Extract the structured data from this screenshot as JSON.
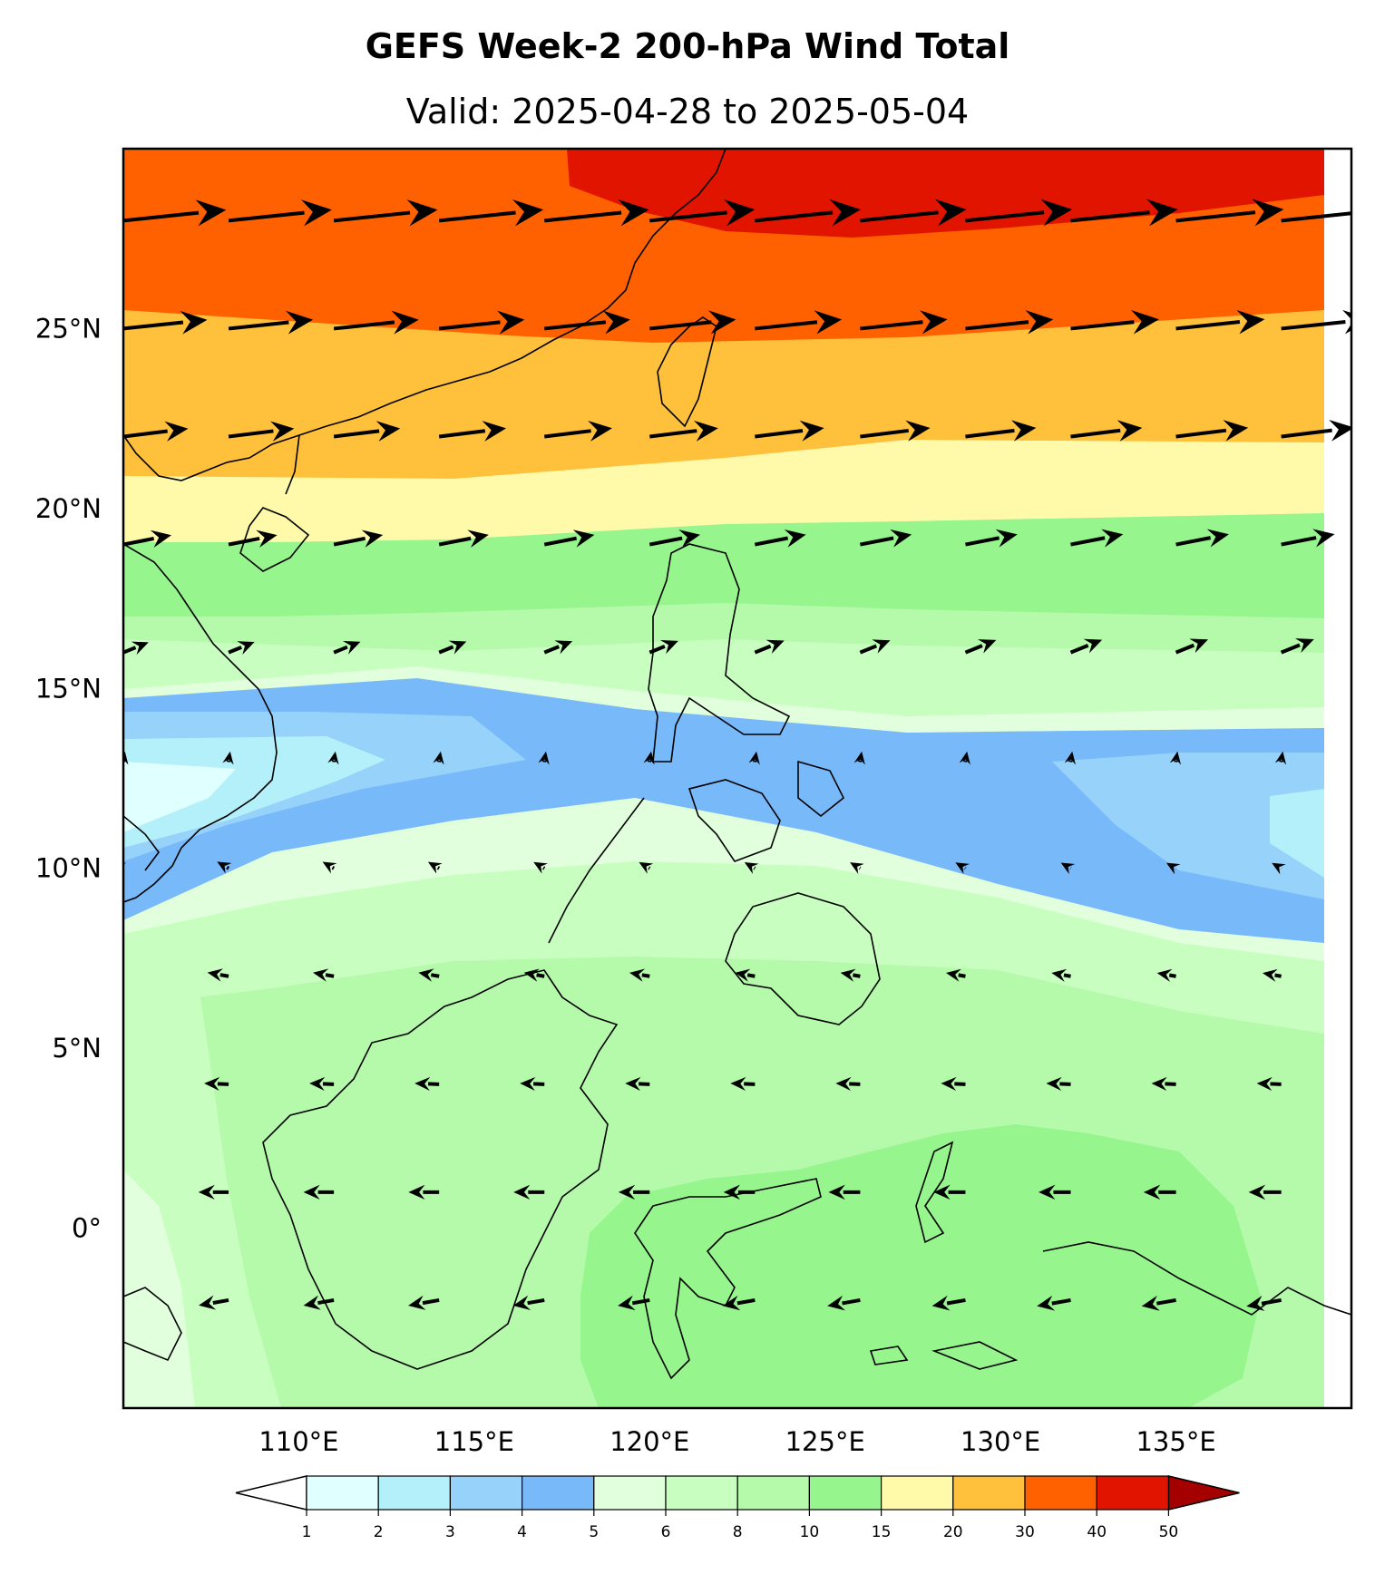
{
  "title": "GEFS Week-2 200-hPa Wind Total",
  "subtitle": "Valid: 2025-04-28 to 2025-05-04",
  "map": {
    "extent": {
      "lon_min": 105,
      "lon_max": 140,
      "lat_min": -5,
      "lat_max": 30
    },
    "lat_ticks": [
      {
        "lat": 25,
        "label": "25°N"
      },
      {
        "lat": 20,
        "label": "20°N"
      },
      {
        "lat": 15,
        "label": "15°N"
      },
      {
        "lat": 10,
        "label": "10°N"
      },
      {
        "lat": 5,
        "label": "5°N"
      },
      {
        "lat": 0,
        "label": "0°"
      }
    ],
    "lon_ticks": [
      {
        "lon": 110,
        "label": "110°E"
      },
      {
        "lon": 115,
        "label": "115°E"
      },
      {
        "lon": 120,
        "label": "120°E"
      },
      {
        "lon": 125,
        "label": "125°E"
      },
      {
        "lon": 130,
        "label": "130°E"
      },
      {
        "lon": 135,
        "label": "135°E"
      }
    ],
    "coastline_color": "#000000"
  },
  "colorbar": {
    "bounds": [
      "1",
      "2",
      "3",
      "4",
      "5",
      "6",
      "8",
      "10",
      "15",
      "20",
      "30",
      "40",
      "50"
    ],
    "colors": [
      "#e0ffff",
      "#b4f0fa",
      "#96d2fa",
      "#78b9fa",
      "#e1ffdc",
      "#c8ffc0",
      "#b4faaa",
      "#96f58c",
      "#fffaaa",
      "#ffc03c",
      "#ff6000",
      "#e11400"
    ],
    "under_color": "#ffffff",
    "over_color": "#a50000"
  },
  "wind_field": {
    "units": "m/s",
    "lats": [
      28,
      25,
      22,
      19,
      16,
      13,
      10,
      7,
      4,
      1,
      -2
    ],
    "lons": [
      105,
      108,
      111,
      114,
      117,
      120,
      123,
      126,
      129,
      132,
      135,
      138
    ],
    "rows": [
      {
        "lat": 28,
        "speed": 38,
        "dir_deg": 6,
        "u_at_east": 40
      },
      {
        "lat": 25,
        "speed": 31,
        "dir_deg": 6,
        "u_at_east": 33
      },
      {
        "lat": 22,
        "speed": 24,
        "dir_deg": 7,
        "u_at_east": 27
      },
      {
        "lat": 19,
        "speed": 18,
        "dir_deg": 11,
        "u_at_east": 20
      },
      {
        "lat": 16,
        "speed": 10,
        "dir_deg": 22,
        "u_at_east": 13
      },
      {
        "lat": 13,
        "speed": 2.5,
        "dir_deg": 80,
        "u_at_east": 3
      },
      {
        "lat": 10,
        "speed": 5,
        "dir_deg": 150,
        "u_at_east": 4
      },
      {
        "lat": 7,
        "speed": 8,
        "dir_deg": 170,
        "u_at_east": 7
      },
      {
        "lat": 4,
        "speed": 9,
        "dir_deg": 178,
        "u_at_east": 9
      },
      {
        "lat": 1,
        "speed": 11,
        "dir_deg": 180,
        "u_at_east": 12
      },
      {
        "lat": -2,
        "speed": 11,
        "dir_deg": 190,
        "u_at_east": 13
      }
    ],
    "speed_bands_by_lat": [
      {
        "lat_from": 29.5,
        "lat_to": 27.5,
        "band": "40-50 (east of 120°E), 30-40 (west)"
      },
      {
        "lat_from": 27.5,
        "lat_to": 24.5,
        "band": "30-40"
      },
      {
        "lat_from": 24.5,
        "lat_to": 21.5,
        "band": "20-30"
      },
      {
        "lat_from": 21.5,
        "lat_to": 19.5,
        "band": "15-20"
      },
      {
        "lat_from": 19.5,
        "lat_to": 16.5,
        "band": "10-15"
      },
      {
        "lat_from": 16.5,
        "lat_to": 14.5,
        "band": "6-10"
      },
      {
        "lat_from": 14.5,
        "lat_to": 10,
        "band": "1-5"
      },
      {
        "lat_from": 10,
        "lat_to": 8,
        "band": "5-8"
      },
      {
        "lat_from": 8,
        "lat_to": -5,
        "band": "8-15"
      }
    ]
  }
}
